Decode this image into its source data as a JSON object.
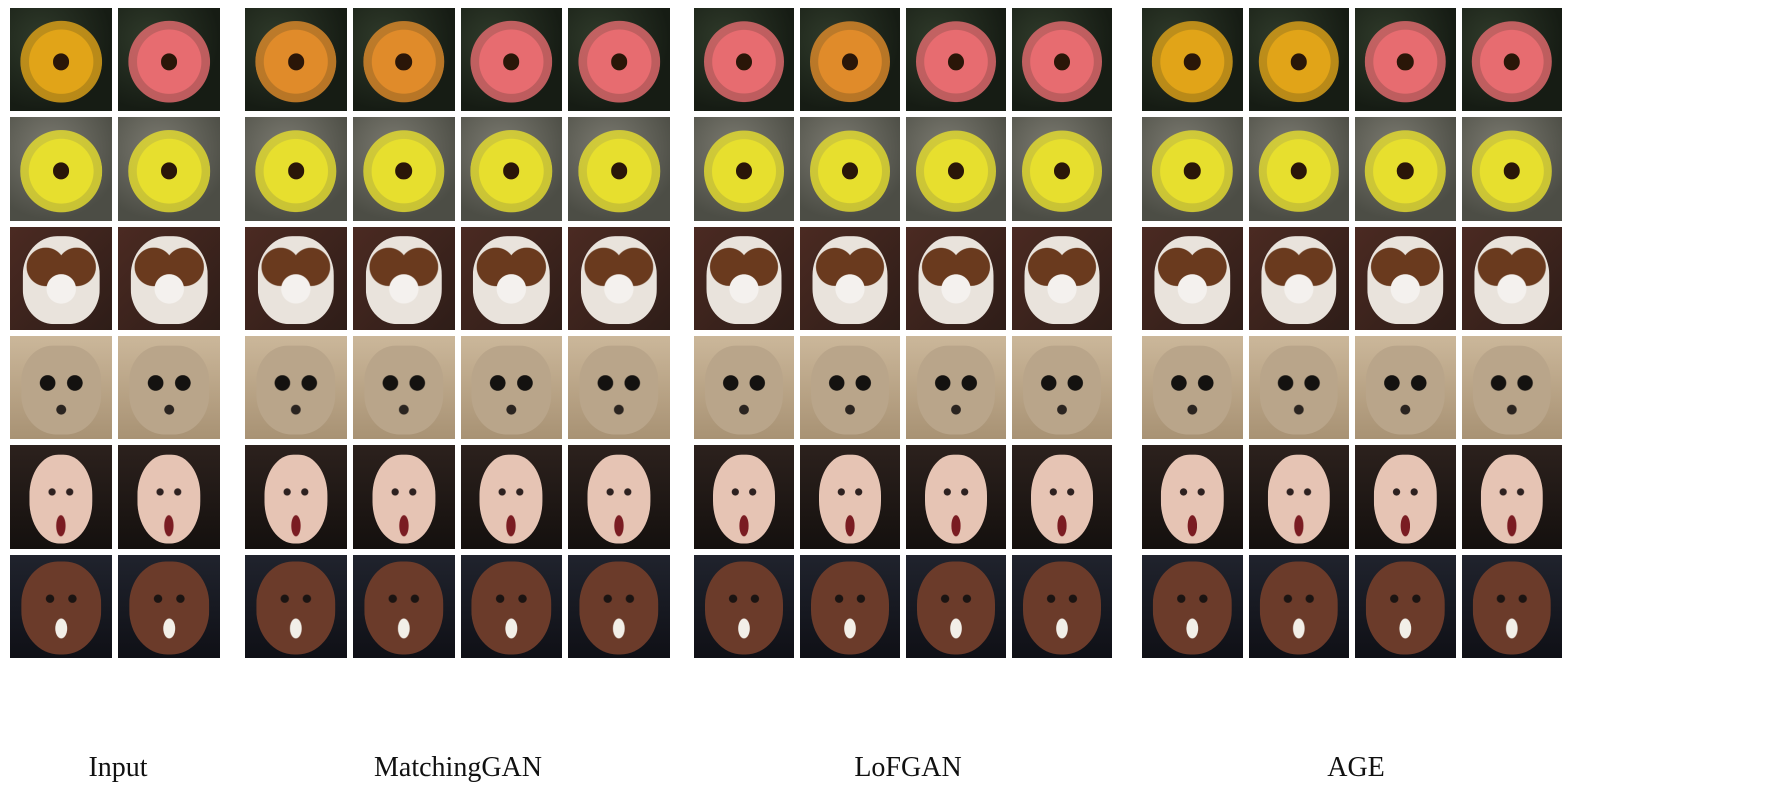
{
  "labels": {
    "input": "Input",
    "matchinggan": "MatchingGAN",
    "lofgan": "LoFGAN",
    "age": "AGE"
  },
  "panels": [
    {
      "id": "input",
      "cols": 2,
      "rows": [
        [
          "flower-yellow-orange",
          "flower-pink"
        ],
        [
          "flower-yellow",
          "flower-yellow"
        ],
        [
          "dog",
          "dog"
        ],
        [
          "meerkat",
          "meerkat"
        ],
        [
          "face-woman",
          "face-woman"
        ],
        [
          "face-man-dark",
          "face-man-dark"
        ]
      ]
    },
    {
      "id": "matchinggan",
      "cols": 4,
      "rows": [
        [
          "flower-orange",
          "flower-orange",
          "flower-pink",
          "flower-pink"
        ],
        [
          "flower-yellow",
          "flower-yellow",
          "flower-yellow",
          "flower-yellow"
        ],
        [
          "dog",
          "dog",
          "dog",
          "dog"
        ],
        [
          "meerkat",
          "meerkat",
          "meerkat",
          "meerkat"
        ],
        [
          "face-woman",
          "face-woman",
          "face-woman",
          "face-woman"
        ],
        [
          "face-man-dark",
          "face-man-dark",
          "face-man-dark",
          "face-man-dark"
        ]
      ]
    },
    {
      "id": "lofgan",
      "cols": 4,
      "rows": [
        [
          "flower-pink",
          "flower-orange",
          "flower-pink",
          "flower-pink"
        ],
        [
          "flower-yellow",
          "flower-yellow",
          "flower-yellow",
          "flower-yellow"
        ],
        [
          "dog",
          "dog",
          "dog",
          "dog"
        ],
        [
          "meerkat",
          "meerkat",
          "meerkat",
          "meerkat"
        ],
        [
          "face-woman",
          "face-woman",
          "face-woman",
          "face-woman"
        ],
        [
          "face-man-dark",
          "face-man-dark",
          "face-man-dark",
          "face-man-dark"
        ]
      ]
    },
    {
      "id": "age",
      "cols": 4,
      "rows": [
        [
          "flower-yellow-orange",
          "flower-yellow-orange",
          "flower-pink",
          "flower-pink"
        ],
        [
          "flower-yellow",
          "flower-yellow",
          "flower-yellow",
          "flower-yellow"
        ],
        [
          "dog",
          "dog",
          "dog",
          "dog"
        ],
        [
          "meerkat",
          "meerkat",
          "meerkat",
          "meerkat"
        ],
        [
          "face-woman",
          "face-woman",
          "face-woman",
          "face-woman"
        ],
        [
          "face-man-dark",
          "face-man-dark",
          "face-man-dark",
          "face-man-dark"
        ]
      ]
    }
  ],
  "colors": {
    "flower-yellow-orange": "#e1a418",
    "flower-orange": "#e08b2a",
    "flower-pink": "#e76c70",
    "flower-yellow": "#e7df2e"
  }
}
